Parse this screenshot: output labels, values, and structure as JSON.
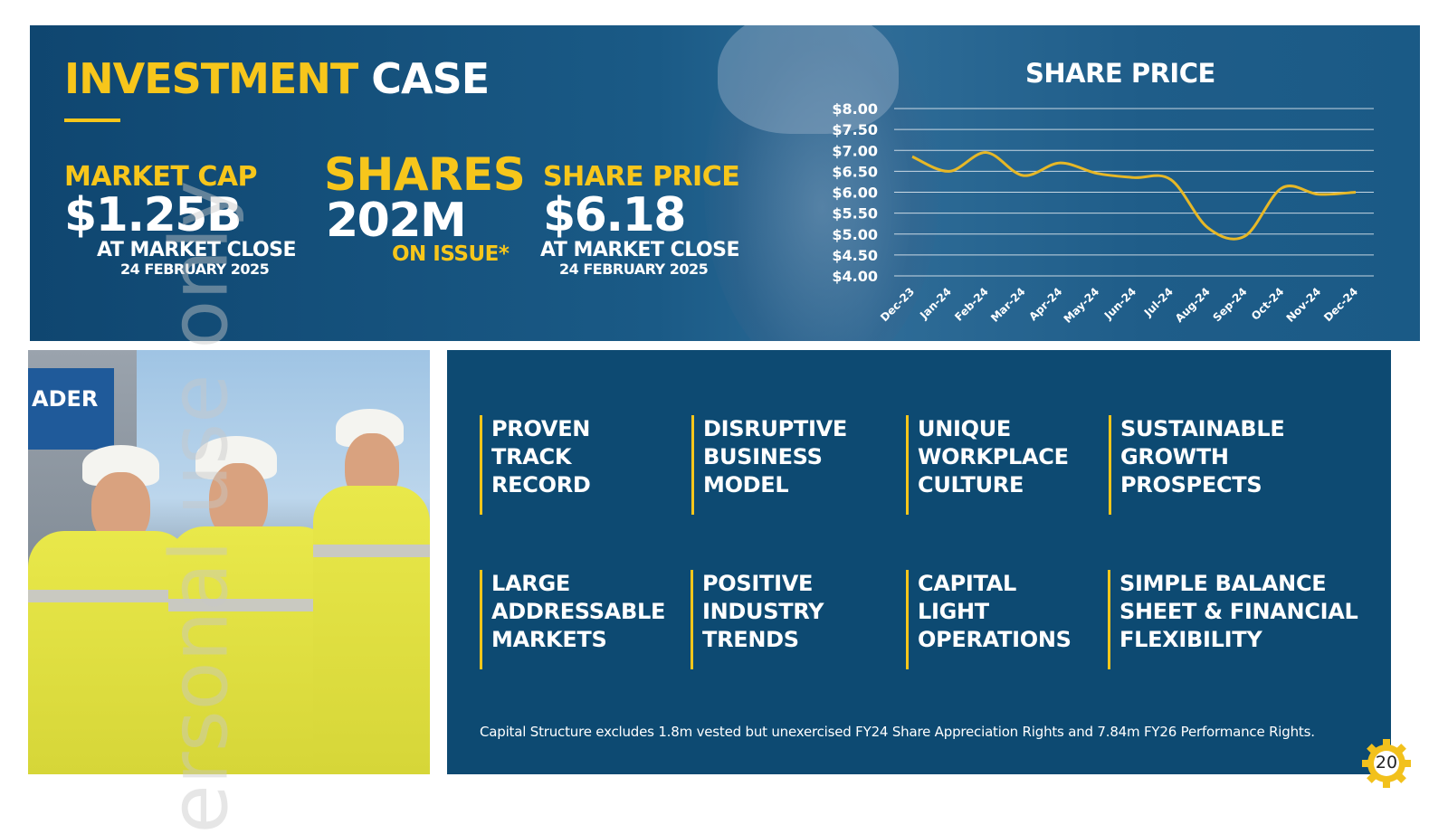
{
  "headline": {
    "part1": "INVESTMENT",
    "part2": "CASE"
  },
  "stats": {
    "market_cap": {
      "label": "MARKET CAP",
      "value": "$1.25B",
      "sub1": "AT MARKET CLOSE",
      "sub2": "24 FEBRUARY 2025"
    },
    "shares": {
      "label": "SHARES",
      "value": "202M",
      "sub1": "ON ISSUE*"
    },
    "share_price": {
      "label": "SHARE PRICE",
      "value": "$6.18",
      "sub1": "AT MARKET CLOSE",
      "sub2": "24 FEBRUARY 2025"
    }
  },
  "chart_data": {
    "type": "line",
    "title": "SHARE PRICE",
    "categories": [
      "Dec-23",
      "Jan-24",
      "Feb-24",
      "Mar-24",
      "Apr-24",
      "May-24",
      "Jun-24",
      "Jul-24",
      "Aug-24",
      "Sep-24",
      "Oct-24",
      "Nov-24",
      "Dec-24"
    ],
    "series": [
      {
        "name": "Share price",
        "values": [
          6.85,
          6.5,
          6.95,
          6.4,
          6.7,
          6.45,
          6.35,
          6.3,
          5.15,
          4.95,
          6.1,
          5.95,
          6.0
        ]
      }
    ],
    "yticks": [
      "$8.00",
      "$7.50",
      "$7.00",
      "$6.50",
      "$6.00",
      "$5.50",
      "$5.00",
      "$4.50",
      "$4.00"
    ],
    "ylim": [
      4.0,
      8.0
    ],
    "grid": true,
    "line_color": "#e7b827"
  },
  "pillars": [
    {
      "text": "PROVEN\nTRACK\nRECORD"
    },
    {
      "text": "DISRUPTIVE\nBUSINESS\nMODEL"
    },
    {
      "text": "UNIQUE\nWORKPLACE\nCULTURE"
    },
    {
      "text": "SUSTAINABLE\nGROWTH\nPROSPECTS"
    },
    {
      "text": "LARGE\nADDRESSABLE\nMARKETS"
    },
    {
      "text": "POSITIVE\nINDUSTRY\nTRENDS"
    },
    {
      "text": "CAPITAL\nLIGHT\nOPERATIONS"
    },
    {
      "text": "SIMPLE BALANCE\nSHEET & FINANCIAL\nFLEXIBILITY"
    }
  ],
  "footnote": "Capital Structure excludes 1.8m vested but unexercised FY24 Share Appreciation Rights and 7.84m FY26 Performance Rights.",
  "watermark": "ersonal use only",
  "page_number": "20",
  "photo_sign": "ADER"
}
